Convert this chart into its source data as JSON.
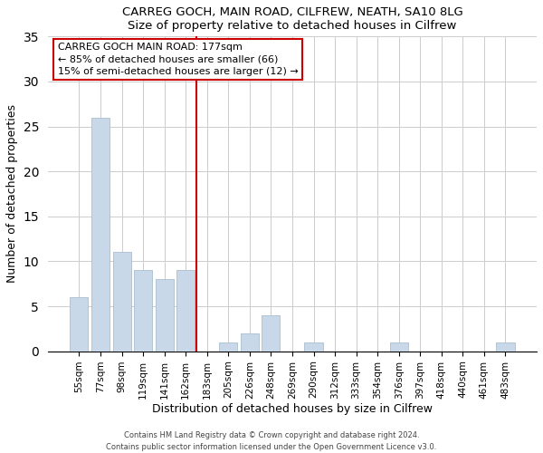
{
  "title": "CARREG GOCH, MAIN ROAD, CILFREW, NEATH, SA10 8LG",
  "subtitle": "Size of property relative to detached houses in Cilfrew",
  "xlabel": "Distribution of detached houses by size in Cilfrew",
  "ylabel": "Number of detached properties",
  "bar_color": "#c8d8e8",
  "bar_edge_color": "#a8bece",
  "categories": [
    "55sqm",
    "77sqm",
    "98sqm",
    "119sqm",
    "141sqm",
    "162sqm",
    "183sqm",
    "205sqm",
    "226sqm",
    "248sqm",
    "269sqm",
    "290sqm",
    "312sqm",
    "333sqm",
    "354sqm",
    "376sqm",
    "397sqm",
    "418sqm",
    "440sqm",
    "461sqm",
    "483sqm"
  ],
  "values": [
    6,
    26,
    11,
    9,
    8,
    9,
    0,
    1,
    2,
    4,
    0,
    1,
    0,
    0,
    0,
    1,
    0,
    0,
    0,
    0,
    1
  ],
  "vline_color": "#cc0000",
  "annotation_title": "CARREG GOCH MAIN ROAD: 177sqm",
  "annotation_line1": "← 85% of detached houses are smaller (66)",
  "annotation_line2": "15% of semi-detached houses are larger (12) →",
  "ylim": [
    0,
    35
  ],
  "yticks": [
    0,
    5,
    10,
    15,
    20,
    25,
    30,
    35
  ],
  "footer1": "Contains HM Land Registry data © Crown copyright and database right 2024.",
  "footer2": "Contains public sector information licensed under the Open Government Licence v3.0."
}
